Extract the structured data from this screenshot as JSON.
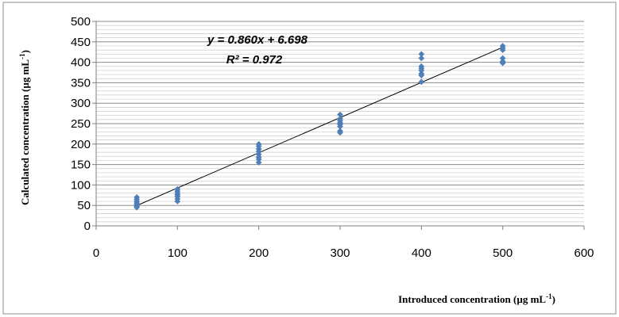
{
  "chart_data": {
    "type": "scatter",
    "xlabel_main": "Introduced concentration (µg mL",
    "xlabel_sup": "-1",
    "xlabel_close": ")",
    "ylabel_main": "Calculated concentration (µg mL",
    "ylabel_sup": "-1",
    "ylabel_close": ")",
    "xlim": [
      0,
      600
    ],
    "ylim": [
      0,
      500
    ],
    "x_ticks": [
      0,
      100,
      200,
      300,
      400,
      500,
      600
    ],
    "y_ticks": [
      0,
      50,
      100,
      150,
      200,
      250,
      300,
      350,
      400,
      450,
      500
    ],
    "grid": "horizontal",
    "legend": "none",
    "marker_color": "#4F81BD",
    "trendline": {
      "slope": 0.86,
      "intercept": 6.698,
      "x_range": [
        50,
        500
      ],
      "color": "#000000"
    },
    "annotations": {
      "equation": "y = 0.860x + 6.698",
      "r_squared": "R² = 0.972"
    },
    "series": [
      {
        "x": [
          50,
          50,
          50,
          50,
          50,
          50,
          50,
          100,
          100,
          100,
          100,
          100,
          100,
          100,
          200,
          200,
          200,
          200,
          200,
          200,
          200,
          200,
          300,
          300,
          300,
          300,
          300,
          300,
          300,
          300,
          400,
          400,
          400,
          400,
          400,
          400,
          400,
          400,
          500,
          500,
          500,
          500,
          500,
          500
        ],
        "y": [
          70,
          65,
          60,
          56,
          52,
          48,
          45,
          90,
          85,
          80,
          76,
          72,
          66,
          60,
          200,
          195,
          188,
          182,
          175,
          168,
          163,
          155,
          272,
          262,
          257,
          252,
          248,
          243,
          232,
          228,
          420,
          410,
          390,
          385,
          380,
          372,
          368,
          352,
          440,
          435,
          430,
          410,
          402,
          398
        ]
      }
    ]
  }
}
